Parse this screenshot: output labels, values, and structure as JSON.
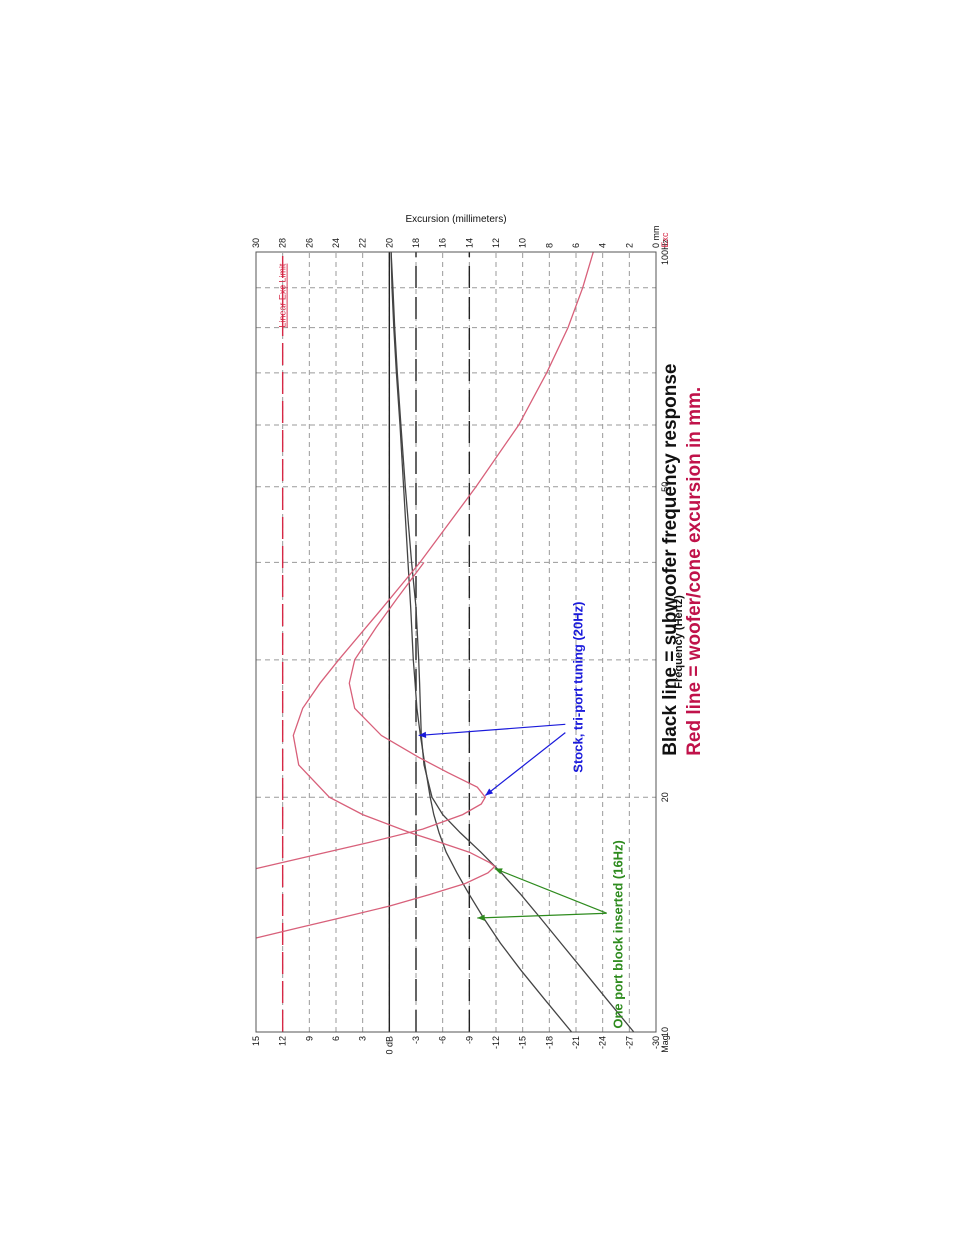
{
  "chart_data": {
    "type": "line",
    "xlabel": "Frequency (Hertz)",
    "x_scale": "log",
    "xlim": [
      10,
      100
    ],
    "x_ticks": [
      {
        "value": 10,
        "label": "10"
      },
      {
        "value": 20,
        "label": "20"
      },
      {
        "value": 50,
        "label": "50"
      },
      {
        "value": 100,
        "label": "100Hz"
      }
    ],
    "x_minor": [
      30,
      40,
      60,
      70,
      80,
      90
    ],
    "y_left": {
      "unit_label": "Mag",
      "range": [
        -30,
        15
      ],
      "ticks": [
        {
          "value": 15,
          "label": "15"
        },
        {
          "value": 12,
          "label": "12"
        },
        {
          "value": 9,
          "label": "9"
        },
        {
          "value": 6,
          "label": "6"
        },
        {
          "value": 3,
          "label": "3"
        },
        {
          "value": 0,
          "label": "0 dB"
        },
        {
          "value": -3,
          "label": "-3"
        },
        {
          "value": -6,
          "label": "-6"
        },
        {
          "value": -9,
          "label": "-9"
        },
        {
          "value": -12,
          "label": "-12"
        },
        {
          "value": -15,
          "label": "-15"
        },
        {
          "value": -18,
          "label": "-18"
        },
        {
          "value": -21,
          "label": "-21"
        },
        {
          "value": -24,
          "label": "-24"
        },
        {
          "value": -27,
          "label": "-27"
        },
        {
          "value": -30,
          "label": "-30"
        }
      ]
    },
    "y_right": {
      "label": "Excursion (millimeters)",
      "unit_label": "Exc",
      "range": [
        0,
        30
      ],
      "ticks": [
        {
          "value": 30,
          "label": "30"
        },
        {
          "value": 28,
          "label": "28"
        },
        {
          "value": 26,
          "label": "26"
        },
        {
          "value": 24,
          "label": "24"
        },
        {
          "value": 22,
          "label": "22"
        },
        {
          "value": 20,
          "label": "20"
        },
        {
          "value": 18,
          "label": "18"
        },
        {
          "value": 16,
          "label": "16"
        },
        {
          "value": 14,
          "label": "14"
        },
        {
          "value": 12,
          "label": "12"
        },
        {
          "value": 10,
          "label": "10"
        },
        {
          "value": 8,
          "label": "8"
        },
        {
          "value": 6,
          "label": "6"
        },
        {
          "value": 4,
          "label": "4"
        },
        {
          "value": 2,
          "label": "2"
        },
        {
          "value": 0,
          "label": "0 mm"
        }
      ]
    },
    "reference_lines": [
      {
        "axis": "y_left",
        "value": 0,
        "style": "solid"
      },
      {
        "axis": "y_left",
        "value": -3,
        "style": "dashed"
      },
      {
        "axis": "y_left",
        "value": -9,
        "style": "dashed"
      },
      {
        "axis": "y_right",
        "value": 28,
        "style": "dashed",
        "color": "#d62846",
        "label": "Linear Exc Limit"
      }
    ],
    "series": [
      {
        "axis": "y_left",
        "color": "#444444",
        "x": [
          10,
          11,
          12,
          13,
          14,
          15,
          16,
          17,
          18,
          19,
          20,
          22,
          24,
          26,
          28,
          30,
          35,
          40,
          50,
          60,
          70,
          80,
          90,
          100
        ],
        "y": [
          -27.5,
          -24.5,
          -21.8,
          -19.3,
          -17.0,
          -14.8,
          -12.6,
          -10.3,
          -8.0,
          -6.0,
          -4.8,
          -3.9,
          -3.6,
          -3.5,
          -3.4,
          -3.3,
          -3.0,
          -2.5,
          -1.8,
          -1.3,
          -0.9,
          -0.6,
          -0.4,
          -0.2
        ]
      },
      {
        "axis": "y_left",
        "color": "#444444",
        "x": [
          10,
          11,
          12,
          13,
          14,
          15,
          16,
          17,
          18,
          19,
          20,
          22,
          24,
          26,
          28,
          30,
          35,
          40,
          50,
          60,
          70,
          80,
          90,
          100
        ],
        "y": [
          -20.5,
          -17.5,
          -14.8,
          -12.5,
          -10.6,
          -9.0,
          -7.6,
          -6.4,
          -5.6,
          -5.0,
          -4.6,
          -4.0,
          -3.5,
          -3.1,
          -2.9,
          -2.7,
          -2.4,
          -2.1,
          -1.6,
          -1.2,
          -0.8,
          -0.5,
          -0.3,
          -0.2
        ]
      },
      {
        "axis": "y_right",
        "color": "#d8607a",
        "x": [
          13.2,
          13.6,
          14.0,
          14.5,
          15.0,
          15.5,
          16.0,
          16.3,
          16.5,
          17.0,
          17.5,
          18.0,
          19.0,
          20.0,
          22.0,
          24.0,
          26.0,
          28.0,
          30.0,
          35.0,
          40.0,
          50.0,
          60.0,
          70.0,
          80.0,
          90.0,
          100.0
        ],
        "y": [
          30,
          26.8,
          23.7,
          20.0,
          17.0,
          14.3,
          12.6,
          12.1,
          12.5,
          14.0,
          16.2,
          18.4,
          22.0,
          24.5,
          26.8,
          27.2,
          26.5,
          25.2,
          23.8,
          20.5,
          17.7,
          13.5,
          10.3,
          8.2,
          6.6,
          5.5,
          4.7
        ]
      },
      {
        "axis": "y_right",
        "color": "#d8607a",
        "x": [
          16.2,
          16.8,
          17.5,
          18.2,
          19.0,
          19.6,
          20.0,
          20.6,
          21.5,
          22.5,
          24.0,
          26.0,
          28.0,
          30.0,
          33.0,
          36.0,
          40.0
        ],
        "y": [
          30,
          26.0,
          21.5,
          17.5,
          14.5,
          13.1,
          12.8,
          13.4,
          15.6,
          17.8,
          20.6,
          22.6,
          23.0,
          22.6,
          21.0,
          19.4,
          17.4
        ]
      }
    ],
    "annotations": {
      "one_port": {
        "text": "One port block inserted (16Hz)",
        "color": "#2e8b1e"
      },
      "stock": {
        "text": "Stock, tri-port tuning (20Hz)",
        "color": "#1a1adb"
      },
      "legend_black": {
        "text": "Black line = subwoofer frequency response",
        "color": "#111111"
      },
      "legend_red": {
        "text": "Red line = woofer/cone excursion in mm.",
        "color": "#c0124a"
      }
    }
  }
}
